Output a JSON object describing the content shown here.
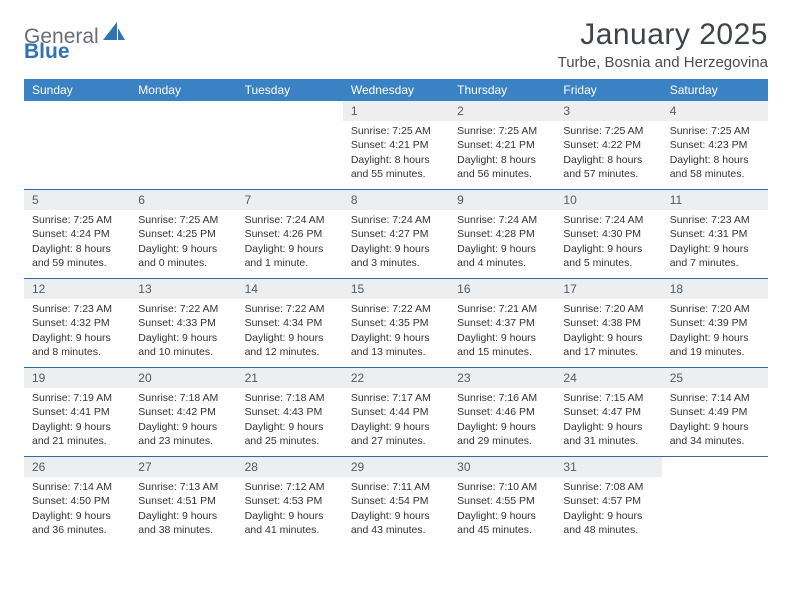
{
  "brand": {
    "part1": "General",
    "part2": "Blue"
  },
  "title": "January 2025",
  "location": "Turbe, Bosnia and Herzegovina",
  "colors": {
    "header_bg": "#3a82c4",
    "header_text": "#ffffff",
    "rule": "#2f6aa8",
    "daynum_bg": "#eceef0",
    "text": "#333333",
    "brand_gray": "#6a6e72",
    "brand_blue": "#2f73b5"
  },
  "days_of_week": [
    "Sunday",
    "Monday",
    "Tuesday",
    "Wednesday",
    "Thursday",
    "Friday",
    "Saturday"
  ],
  "weeks": [
    [
      {
        "empty": true
      },
      {
        "empty": true
      },
      {
        "empty": true
      },
      {
        "n": "1",
        "sr": "Sunrise: 7:25 AM",
        "ss": "Sunset: 4:21 PM",
        "d1": "Daylight: 8 hours",
        "d2": "and 55 minutes."
      },
      {
        "n": "2",
        "sr": "Sunrise: 7:25 AM",
        "ss": "Sunset: 4:21 PM",
        "d1": "Daylight: 8 hours",
        "d2": "and 56 minutes."
      },
      {
        "n": "3",
        "sr": "Sunrise: 7:25 AM",
        "ss": "Sunset: 4:22 PM",
        "d1": "Daylight: 8 hours",
        "d2": "and 57 minutes."
      },
      {
        "n": "4",
        "sr": "Sunrise: 7:25 AM",
        "ss": "Sunset: 4:23 PM",
        "d1": "Daylight: 8 hours",
        "d2": "and 58 minutes."
      }
    ],
    [
      {
        "n": "5",
        "sr": "Sunrise: 7:25 AM",
        "ss": "Sunset: 4:24 PM",
        "d1": "Daylight: 8 hours",
        "d2": "and 59 minutes."
      },
      {
        "n": "6",
        "sr": "Sunrise: 7:25 AM",
        "ss": "Sunset: 4:25 PM",
        "d1": "Daylight: 9 hours",
        "d2": "and 0 minutes."
      },
      {
        "n": "7",
        "sr": "Sunrise: 7:24 AM",
        "ss": "Sunset: 4:26 PM",
        "d1": "Daylight: 9 hours",
        "d2": "and 1 minute."
      },
      {
        "n": "8",
        "sr": "Sunrise: 7:24 AM",
        "ss": "Sunset: 4:27 PM",
        "d1": "Daylight: 9 hours",
        "d2": "and 3 minutes."
      },
      {
        "n": "9",
        "sr": "Sunrise: 7:24 AM",
        "ss": "Sunset: 4:28 PM",
        "d1": "Daylight: 9 hours",
        "d2": "and 4 minutes."
      },
      {
        "n": "10",
        "sr": "Sunrise: 7:24 AM",
        "ss": "Sunset: 4:30 PM",
        "d1": "Daylight: 9 hours",
        "d2": "and 5 minutes."
      },
      {
        "n": "11",
        "sr": "Sunrise: 7:23 AM",
        "ss": "Sunset: 4:31 PM",
        "d1": "Daylight: 9 hours",
        "d2": "and 7 minutes."
      }
    ],
    [
      {
        "n": "12",
        "sr": "Sunrise: 7:23 AM",
        "ss": "Sunset: 4:32 PM",
        "d1": "Daylight: 9 hours",
        "d2": "and 8 minutes."
      },
      {
        "n": "13",
        "sr": "Sunrise: 7:22 AM",
        "ss": "Sunset: 4:33 PM",
        "d1": "Daylight: 9 hours",
        "d2": "and 10 minutes."
      },
      {
        "n": "14",
        "sr": "Sunrise: 7:22 AM",
        "ss": "Sunset: 4:34 PM",
        "d1": "Daylight: 9 hours",
        "d2": "and 12 minutes."
      },
      {
        "n": "15",
        "sr": "Sunrise: 7:22 AM",
        "ss": "Sunset: 4:35 PM",
        "d1": "Daylight: 9 hours",
        "d2": "and 13 minutes."
      },
      {
        "n": "16",
        "sr": "Sunrise: 7:21 AM",
        "ss": "Sunset: 4:37 PM",
        "d1": "Daylight: 9 hours",
        "d2": "and 15 minutes."
      },
      {
        "n": "17",
        "sr": "Sunrise: 7:20 AM",
        "ss": "Sunset: 4:38 PM",
        "d1": "Daylight: 9 hours",
        "d2": "and 17 minutes."
      },
      {
        "n": "18",
        "sr": "Sunrise: 7:20 AM",
        "ss": "Sunset: 4:39 PM",
        "d1": "Daylight: 9 hours",
        "d2": "and 19 minutes."
      }
    ],
    [
      {
        "n": "19",
        "sr": "Sunrise: 7:19 AM",
        "ss": "Sunset: 4:41 PM",
        "d1": "Daylight: 9 hours",
        "d2": "and 21 minutes."
      },
      {
        "n": "20",
        "sr": "Sunrise: 7:18 AM",
        "ss": "Sunset: 4:42 PM",
        "d1": "Daylight: 9 hours",
        "d2": "and 23 minutes."
      },
      {
        "n": "21",
        "sr": "Sunrise: 7:18 AM",
        "ss": "Sunset: 4:43 PM",
        "d1": "Daylight: 9 hours",
        "d2": "and 25 minutes."
      },
      {
        "n": "22",
        "sr": "Sunrise: 7:17 AM",
        "ss": "Sunset: 4:44 PM",
        "d1": "Daylight: 9 hours",
        "d2": "and 27 minutes."
      },
      {
        "n": "23",
        "sr": "Sunrise: 7:16 AM",
        "ss": "Sunset: 4:46 PM",
        "d1": "Daylight: 9 hours",
        "d2": "and 29 minutes."
      },
      {
        "n": "24",
        "sr": "Sunrise: 7:15 AM",
        "ss": "Sunset: 4:47 PM",
        "d1": "Daylight: 9 hours",
        "d2": "and 31 minutes."
      },
      {
        "n": "25",
        "sr": "Sunrise: 7:14 AM",
        "ss": "Sunset: 4:49 PM",
        "d1": "Daylight: 9 hours",
        "d2": "and 34 minutes."
      }
    ],
    [
      {
        "n": "26",
        "sr": "Sunrise: 7:14 AM",
        "ss": "Sunset: 4:50 PM",
        "d1": "Daylight: 9 hours",
        "d2": "and 36 minutes."
      },
      {
        "n": "27",
        "sr": "Sunrise: 7:13 AM",
        "ss": "Sunset: 4:51 PM",
        "d1": "Daylight: 9 hours",
        "d2": "and 38 minutes."
      },
      {
        "n": "28",
        "sr": "Sunrise: 7:12 AM",
        "ss": "Sunset: 4:53 PM",
        "d1": "Daylight: 9 hours",
        "d2": "and 41 minutes."
      },
      {
        "n": "29",
        "sr": "Sunrise: 7:11 AM",
        "ss": "Sunset: 4:54 PM",
        "d1": "Daylight: 9 hours",
        "d2": "and 43 minutes."
      },
      {
        "n": "30",
        "sr": "Sunrise: 7:10 AM",
        "ss": "Sunset: 4:55 PM",
        "d1": "Daylight: 9 hours",
        "d2": "and 45 minutes."
      },
      {
        "n": "31",
        "sr": "Sunrise: 7:08 AM",
        "ss": "Sunset: 4:57 PM",
        "d1": "Daylight: 9 hours",
        "d2": "and 48 minutes."
      },
      {
        "empty": true
      }
    ]
  ]
}
